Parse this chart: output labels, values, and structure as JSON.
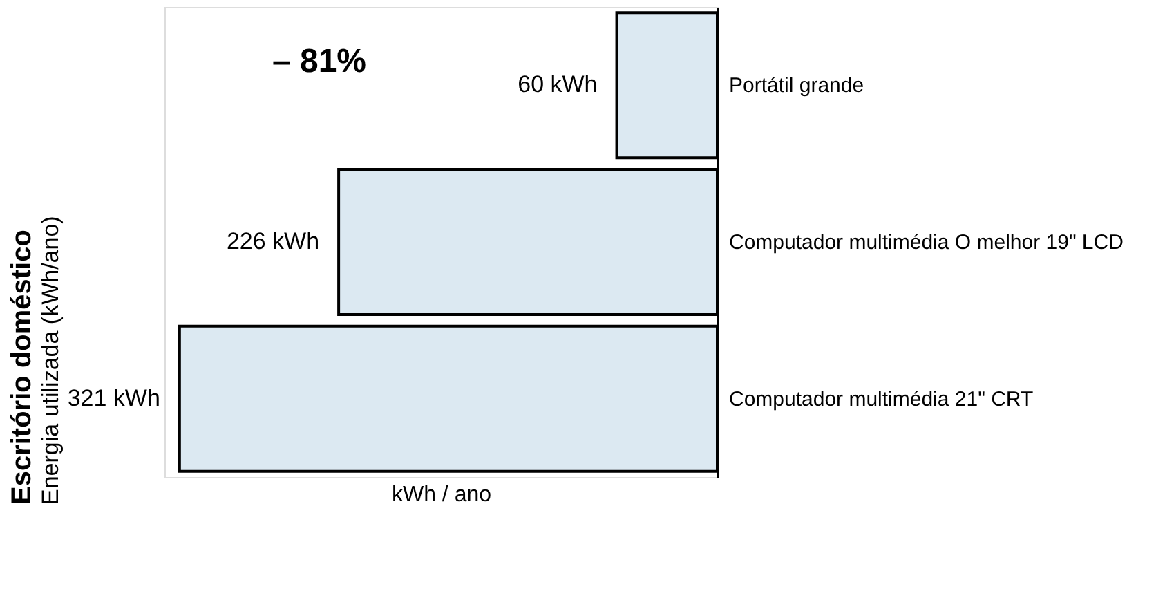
{
  "chart_data": {
    "type": "bar",
    "orientation": "horizontal",
    "title": "Escritório doméstico",
    "subtitle": "Energia utilizada (kWh/ano)",
    "xlabel": "kWh / ano",
    "categories": [
      "Portátil grande",
      "Computador multimédia O melhor 19\" LCD",
      "Computador multimédia 21\" CRT"
    ],
    "values": [
      60,
      226,
      321
    ],
    "color": "#dce9f2",
    "value_labels": [
      "60 kWh",
      "226 kWh",
      "321 kWh"
    ],
    "xlim": [
      330,
      0
    ],
    "tick_labels": "y",
    "annotations": [
      "– 81%"
    ]
  }
}
